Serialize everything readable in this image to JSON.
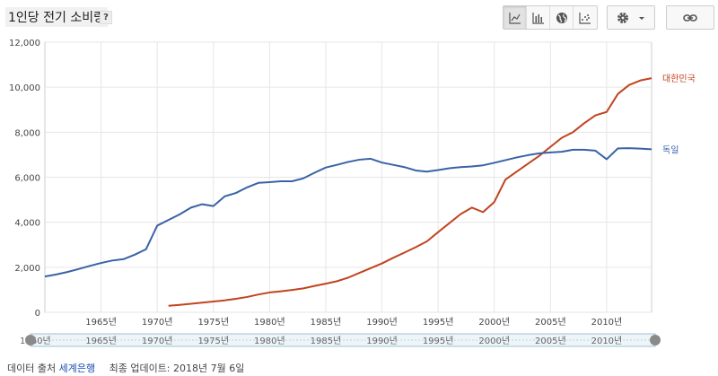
{
  "header": {
    "title": "1인당 전기 소비량",
    "help_label": "?"
  },
  "toolbar": {
    "chart_types": [
      {
        "name": "line-chart-icon",
        "active": true
      },
      {
        "name": "bar-chart-icon",
        "active": false
      },
      {
        "name": "map-globe-icon",
        "active": false
      },
      {
        "name": "scatter-chart-icon",
        "active": false
      }
    ]
  },
  "footer": {
    "source_prefix": "데이터 출처",
    "source_name": "세계은행",
    "updated": "최종 업데이트: 2018년 7월 6일"
  },
  "slider": {
    "start_label": "1960년",
    "ticks": [
      "1965년",
      "1970년",
      "1975년",
      "1980년",
      "1985년",
      "1990년",
      "1995년",
      "2000년",
      "2005년",
      "2010년"
    ]
  },
  "colors": {
    "korea": "#c1441f",
    "germany": "#3a62a6",
    "grid": "#e6e6e6"
  },
  "chart_data": {
    "type": "line",
    "ylim": [
      0,
      12000
    ],
    "xlim": [
      1960,
      2014
    ],
    "yticks": [
      0,
      2000,
      4000,
      6000,
      8000,
      10000,
      12000
    ],
    "ytick_labels": [
      "0",
      "2,000",
      "4,000",
      "6,000",
      "8,000",
      "10,000",
      "12,000"
    ],
    "xticks": [
      1965,
      1970,
      1975,
      1980,
      1985,
      1990,
      1995,
      2000,
      2005,
      2010
    ],
    "xtick_labels": [
      "1965년",
      "1970년",
      "1975년",
      "1980년",
      "1985년",
      "1990년",
      "1995년",
      "2000년",
      "2005년",
      "2010년"
    ],
    "series": [
      {
        "name": "대한민국",
        "color": "#c1441f",
        "x": [
          1971,
          1972,
          1973,
          1974,
          1975,
          1976,
          1977,
          1978,
          1979,
          1980,
          1981,
          1982,
          1983,
          1984,
          1985,
          1986,
          1987,
          1988,
          1989,
          1990,
          1991,
          1992,
          1993,
          1994,
          1995,
          1996,
          1997,
          1998,
          1999,
          2000,
          2001,
          2002,
          2003,
          2004,
          2005,
          2006,
          2007,
          2008,
          2009,
          2010,
          2011,
          2012,
          2013,
          2014
        ],
        "values": [
          290,
          330,
          380,
          430,
          480,
          530,
          600,
          680,
          790,
          880,
          930,
          990,
          1060,
          1170,
          1270,
          1380,
          1540,
          1750,
          1960,
          2170,
          2420,
          2650,
          2890,
          3150,
          3560,
          3960,
          4360,
          4650,
          4450,
          4900,
          5900,
          6250,
          6600,
          6950,
          7350,
          7750,
          8000,
          8400,
          8750,
          8900,
          9700,
          10100,
          10300,
          10400
        ]
      },
      {
        "name": "독일",
        "color": "#3a62a6",
        "x": [
          1960,
          1961,
          1962,
          1963,
          1964,
          1965,
          1966,
          1967,
          1968,
          1969,
          1970,
          1971,
          1972,
          1973,
          1974,
          1975,
          1976,
          1977,
          1978,
          1979,
          1980,
          1981,
          1982,
          1983,
          1984,
          1985,
          1986,
          1987,
          1988,
          1989,
          1990,
          1991,
          1992,
          1993,
          1994,
          1995,
          1996,
          1997,
          1998,
          1999,
          2000,
          2001,
          2002,
          2003,
          2004,
          2005,
          2006,
          2007,
          2008,
          2009,
          2010,
          2011,
          2012,
          2013,
          2014
        ],
        "values": [
          1590,
          1680,
          1790,
          1920,
          2060,
          2190,
          2300,
          2360,
          2560,
          2800,
          3850,
          4100,
          4350,
          4650,
          4800,
          4720,
          5150,
          5300,
          5550,
          5750,
          5780,
          5820,
          5820,
          5950,
          6200,
          6430,
          6550,
          6680,
          6780,
          6820,
          6650,
          6550,
          6450,
          6300,
          6250,
          6320,
          6400,
          6450,
          6480,
          6530,
          6640,
          6760,
          6880,
          6980,
          7060,
          7100,
          7130,
          7220,
          7220,
          7180,
          6800,
          7280,
          7290,
          7270,
          7240
        ]
      }
    ]
  }
}
